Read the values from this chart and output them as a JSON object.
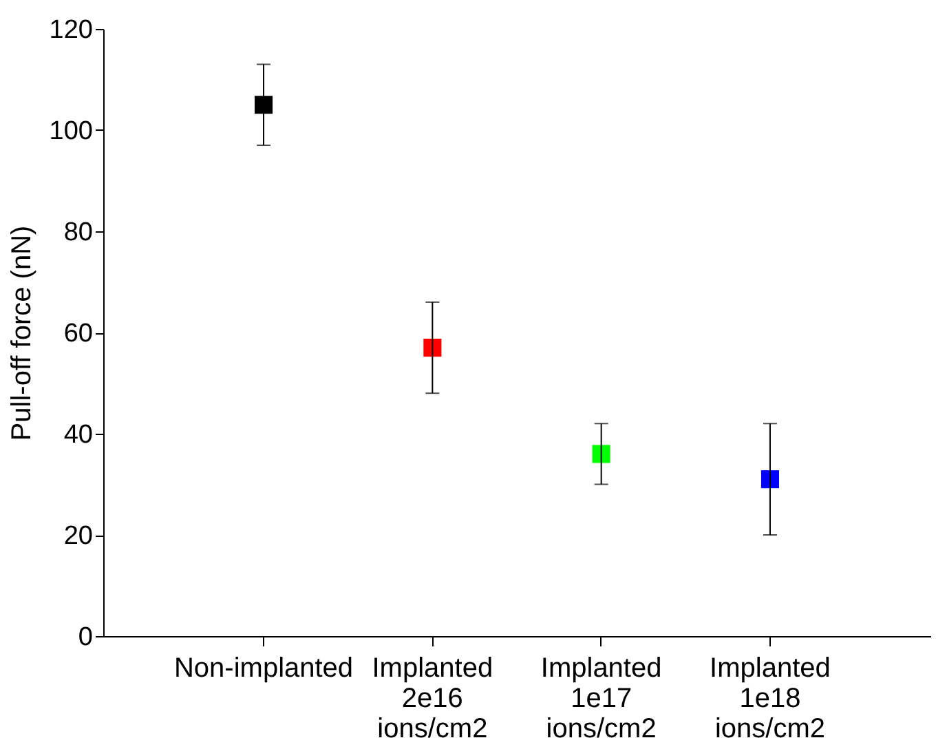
{
  "chart_data": {
    "type": "scatter",
    "ylabel": "Pull-off force (nN)",
    "categories": [
      "Non-implanted",
      "Implanted\n2e16\nions/cm2",
      "Implanted\n1e17\nions/cm2",
      "Implanted\n1e18\nions/cm2"
    ],
    "values": [
      105,
      57,
      36,
      31
    ],
    "errors": [
      [
        97,
        113
      ],
      [
        48,
        66
      ],
      [
        30,
        42
      ],
      [
        20,
        42
      ]
    ],
    "colors": [
      "#000000",
      "#ff0000",
      "#00ff00",
      "#0000ff"
    ],
    "marker": "square",
    "ylim": [
      0,
      120
    ],
    "yticks": [
      0,
      20,
      40,
      60,
      80,
      100,
      120
    ],
    "grid": false
  }
}
